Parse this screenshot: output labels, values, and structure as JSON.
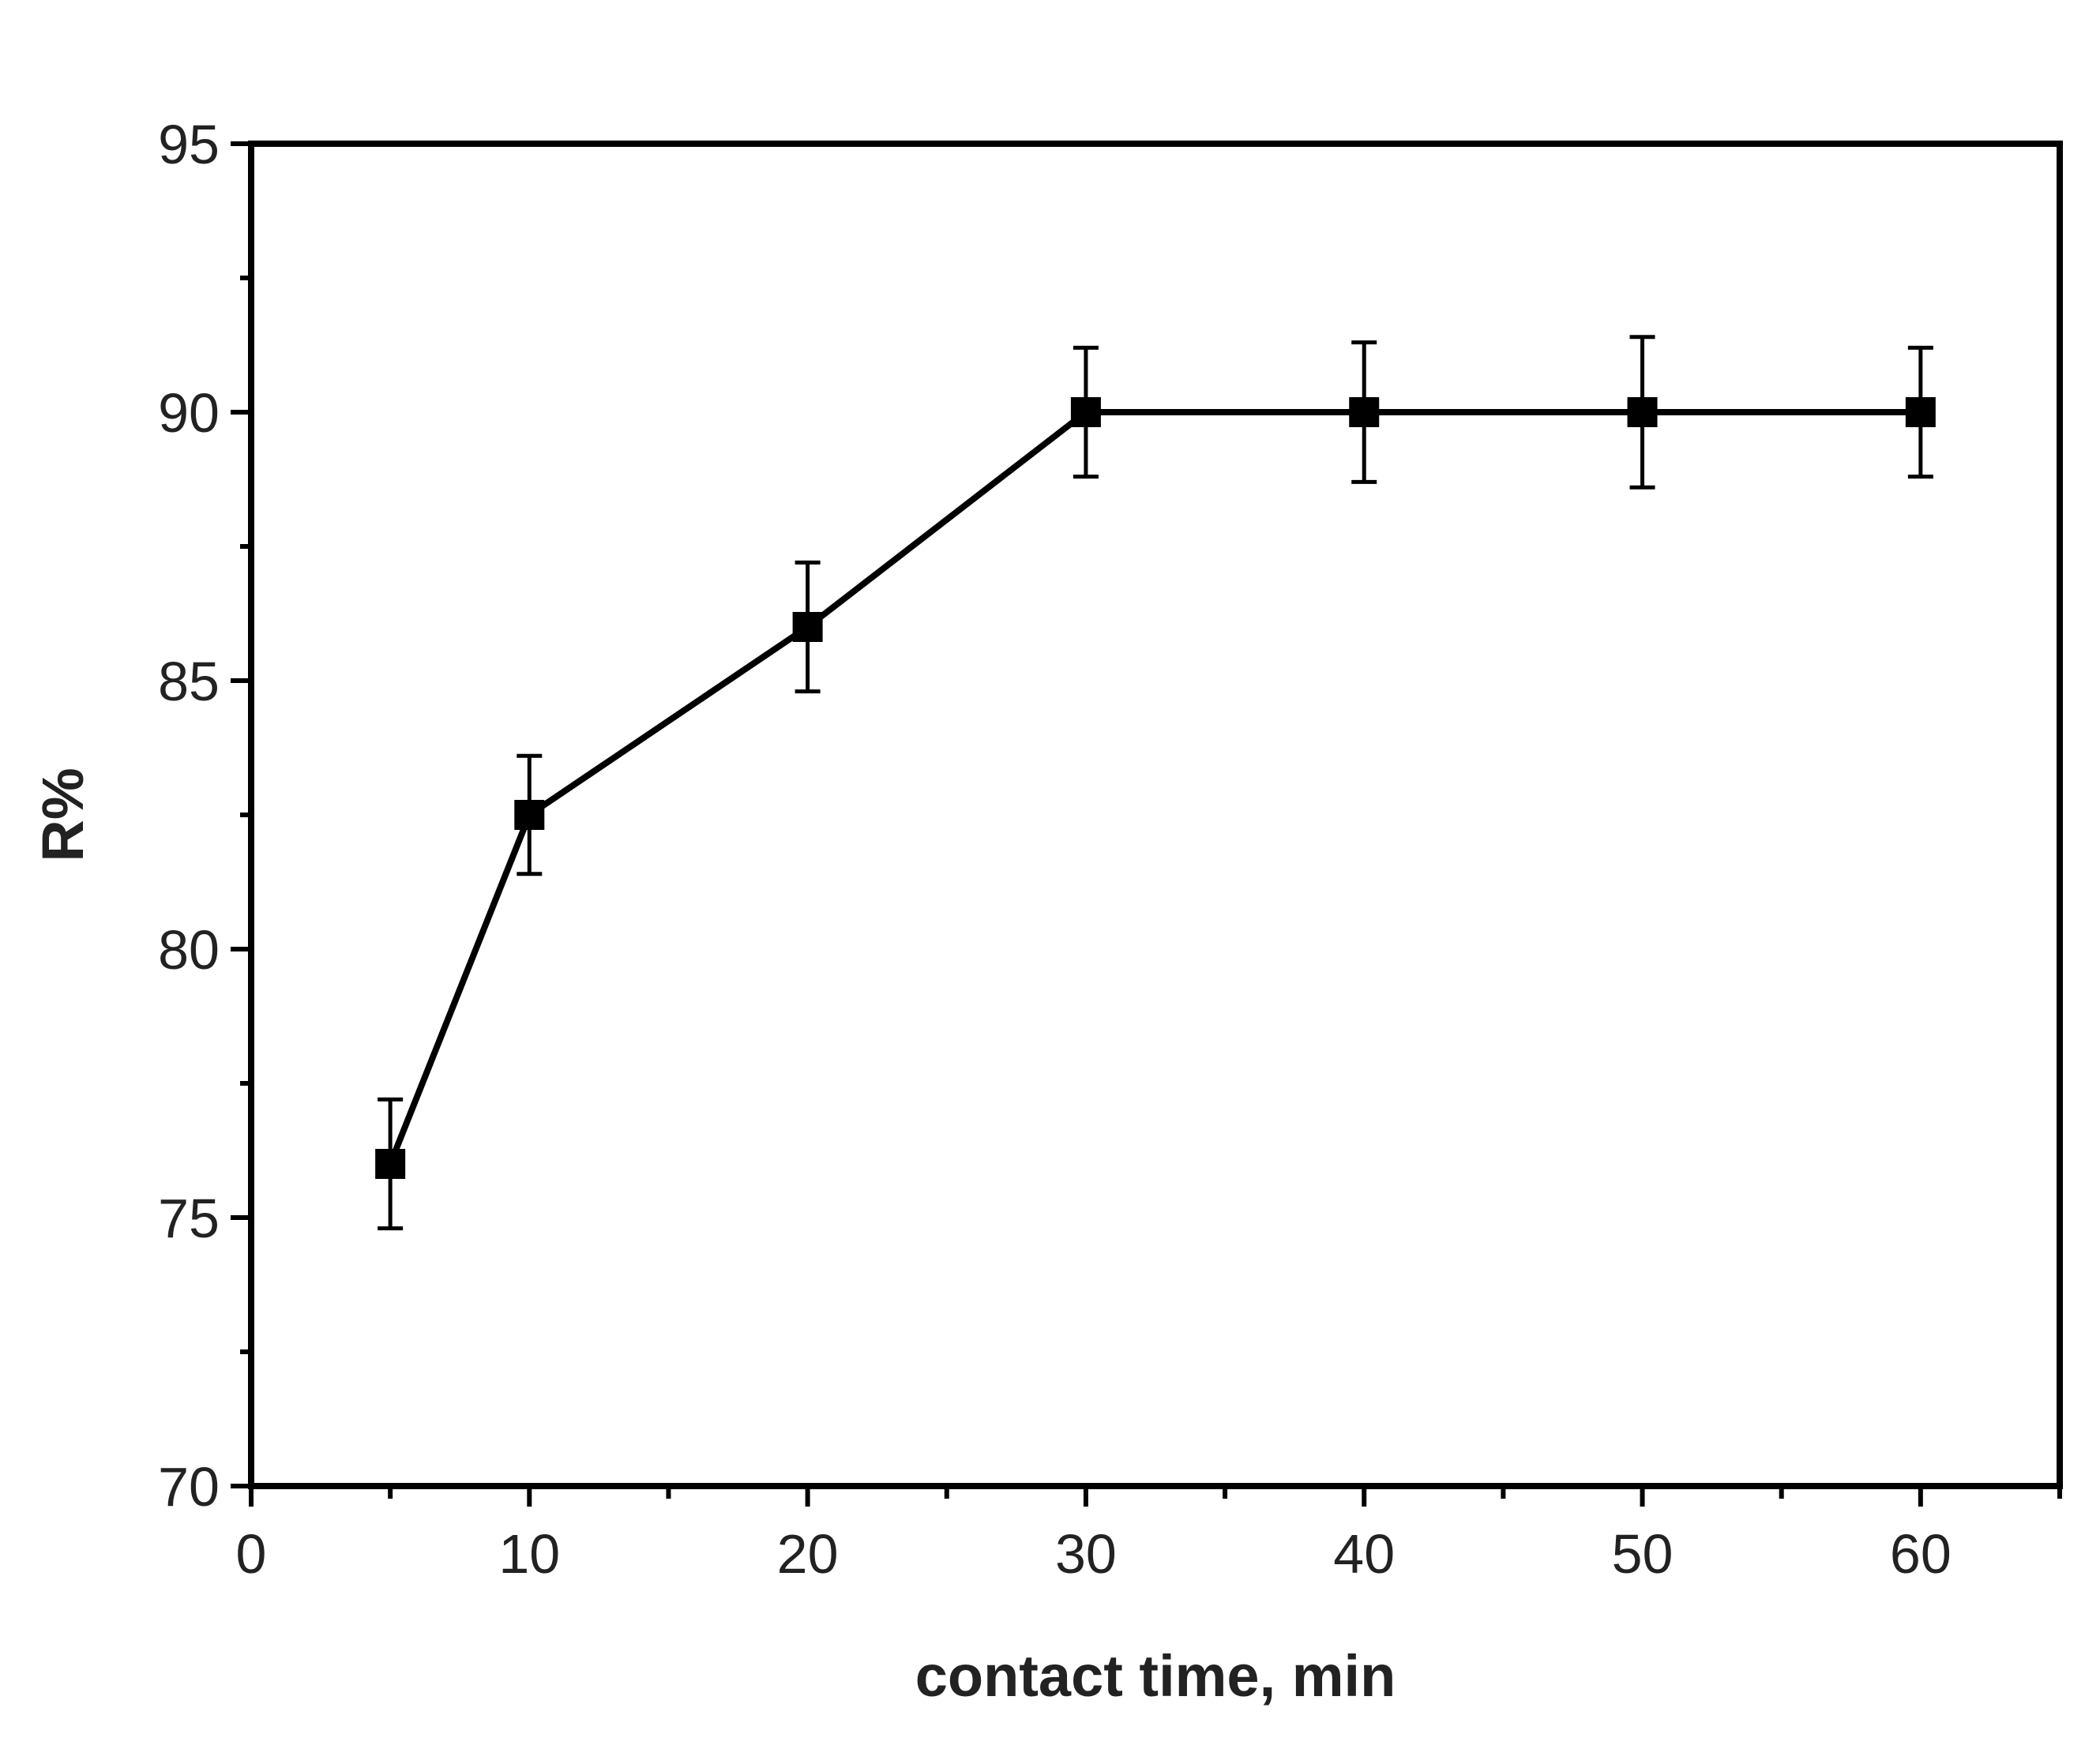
{
  "chart_data": {
    "type": "line",
    "title": "",
    "xlabel": "contact time, min",
    "ylabel": "R%",
    "xlim": [
      0,
      65
    ],
    "ylim": [
      70,
      95
    ],
    "x_ticks": [
      0,
      10,
      20,
      30,
      40,
      50,
      60
    ],
    "y_ticks": [
      70,
      75,
      80,
      85,
      90,
      95
    ],
    "grid": false,
    "legend": "none",
    "series": [
      {
        "x": [
          5,
          10,
          20,
          30,
          40,
          50,
          60
        ],
        "values": [
          76,
          82.5,
          86,
          90,
          90,
          90,
          90
        ],
        "error": [
          1.2,
          1.1,
          1.2,
          1.2,
          1.3,
          1.4,
          1.2
        ],
        "marker": "square",
        "color": "#000000"
      }
    ]
  }
}
